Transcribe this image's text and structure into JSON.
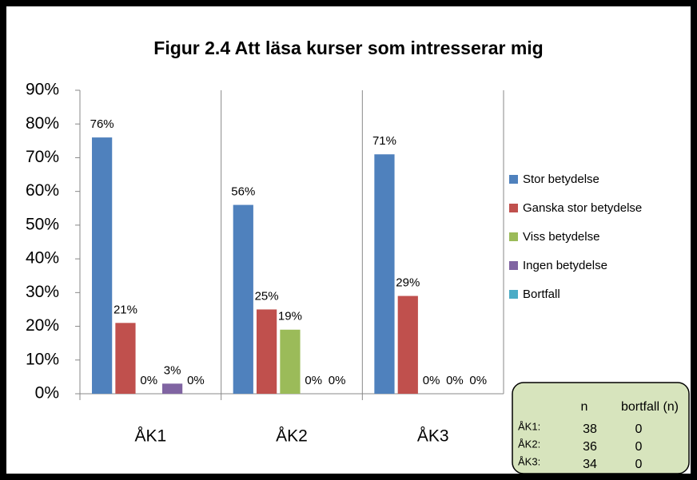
{
  "chart_data": {
    "type": "bar",
    "title": "Figur 2.4 Att läsa kurser som intresserar mig",
    "categories": [
      "ÅK1",
      "ÅK2",
      "ÅK3"
    ],
    "series": [
      {
        "name": "Stor betydelse",
        "color": "#4f81bd",
        "values": [
          76,
          56,
          71
        ],
        "value_labels": [
          "76%",
          "56%",
          "71%"
        ]
      },
      {
        "name": "Ganska stor betydelse",
        "color": "#c0504d",
        "values": [
          21,
          25,
          29
        ],
        "value_labels": [
          "21%",
          "25%",
          "29%"
        ]
      },
      {
        "name": "Viss betydelse",
        "color": "#9bbb59",
        "values": [
          0,
          19,
          0
        ],
        "value_labels": [
          "0%",
          "19%",
          "0%"
        ]
      },
      {
        "name": "Ingen betydelse",
        "color": "#8064a2",
        "values": [
          3,
          0,
          0
        ],
        "value_labels": [
          "3%",
          "0%",
          "0%"
        ]
      },
      {
        "name": "Bortfall",
        "color": "#4bacc6",
        "values": [
          0,
          0,
          0
        ],
        "value_labels": [
          "0%",
          "0%",
          "0%"
        ]
      }
    ],
    "ylim": [
      0,
      90
    ],
    "yticks": [
      {
        "value": 0,
        "label": "0%"
      },
      {
        "value": 10,
        "label": "10%"
      },
      {
        "value": 20,
        "label": "20%"
      },
      {
        "value": 30,
        "label": "30%"
      },
      {
        "value": 40,
        "label": "40%"
      },
      {
        "value": 50,
        "label": "50%"
      },
      {
        "value": 60,
        "label": "60%"
      },
      {
        "value": 70,
        "label": "70%"
      },
      {
        "value": 80,
        "label": "80%"
      },
      {
        "value": 90,
        "label": "90%"
      }
    ],
    "legend": "right",
    "table": {
      "headers": [
        "n",
        "bortfall (n)"
      ],
      "rows": [
        {
          "label": "ÅK1:",
          "n": 38,
          "bortfall": 0
        },
        {
          "label": "ÅK2:",
          "n": 36,
          "bortfall": 0
        },
        {
          "label": "ÅK3:",
          "n": 34,
          "bortfall": 0
        }
      ]
    }
  }
}
